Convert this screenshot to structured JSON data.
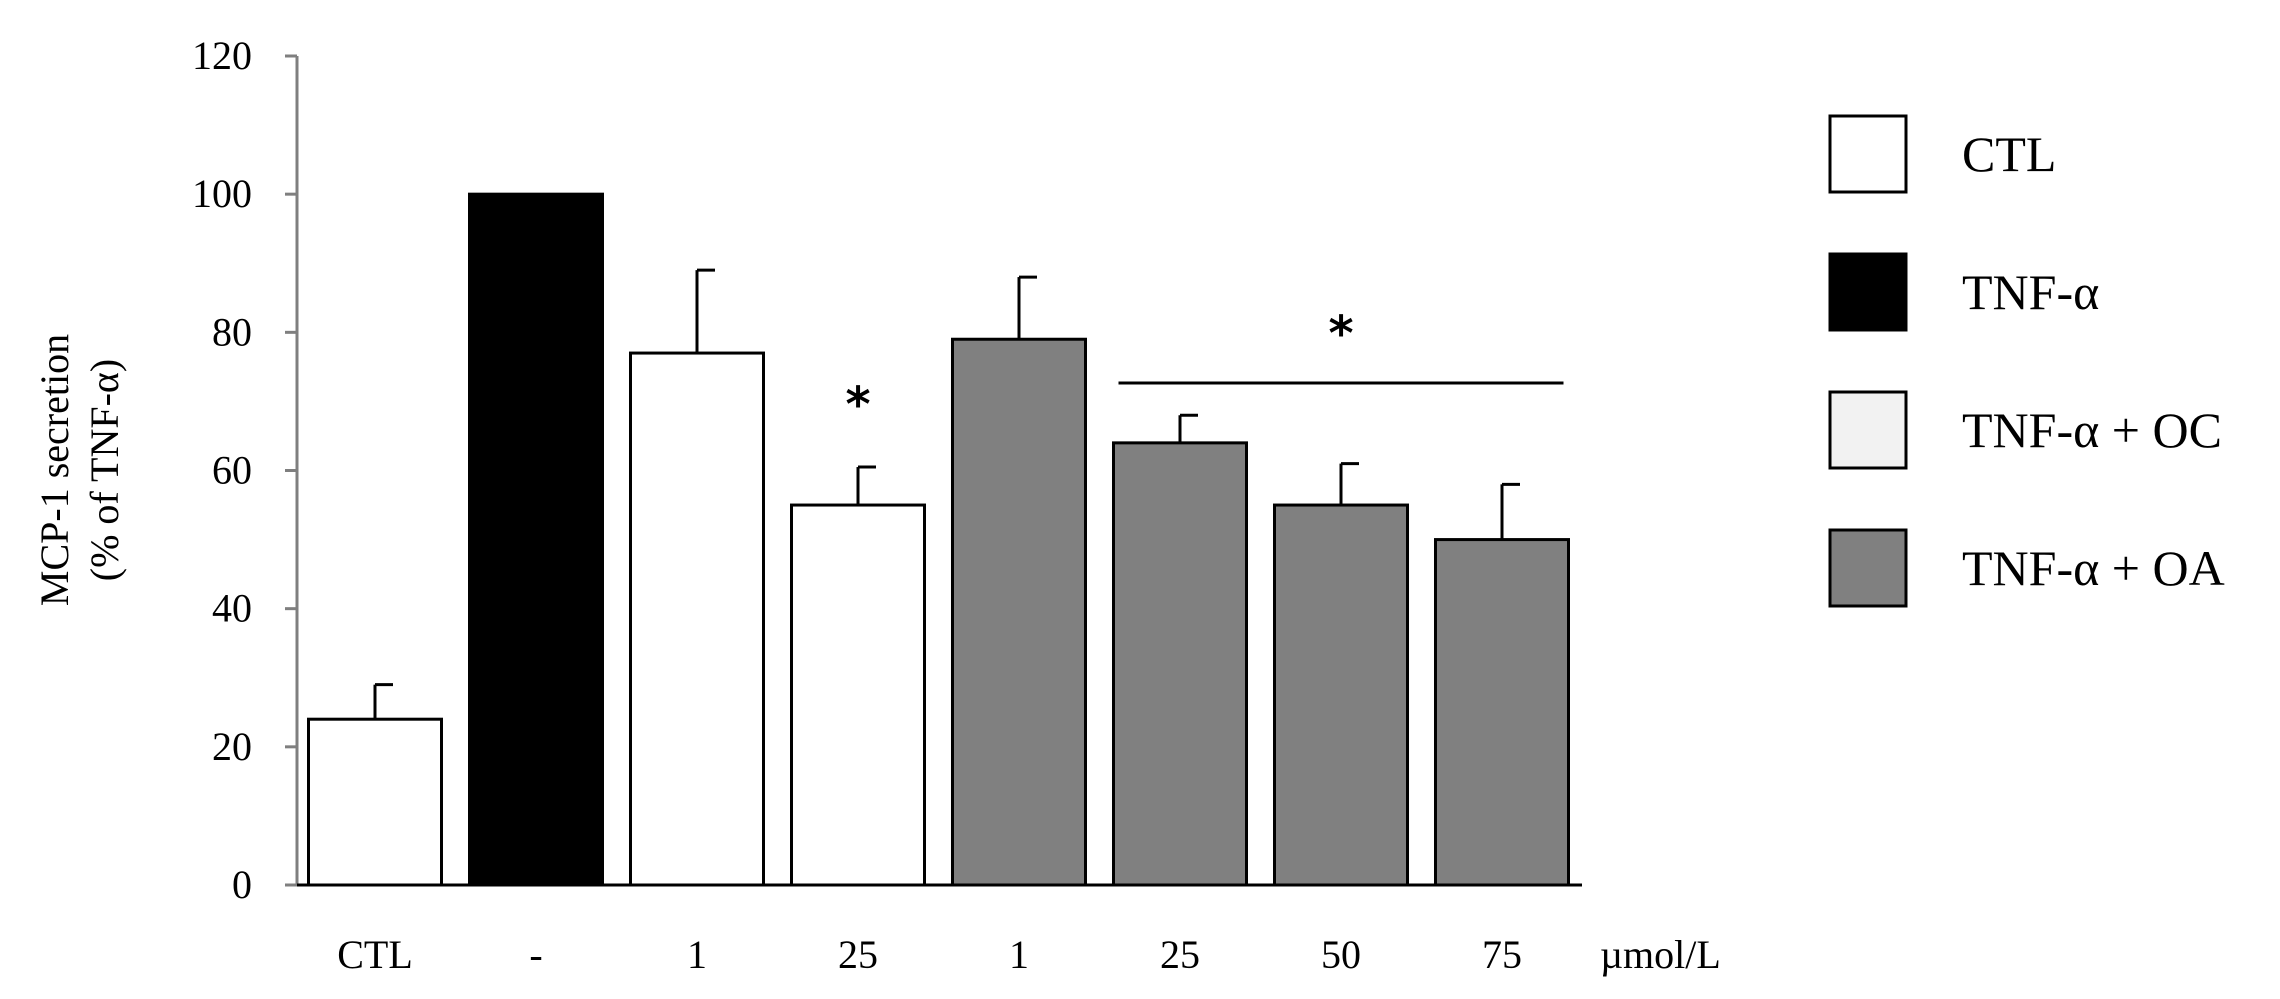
{
  "chart_data": {
    "type": "bar",
    "ylabel_lines": [
      "MCP-1 secretion",
      "(% of TNF-α)"
    ],
    "xunit": "µmol/L",
    "ylim": [
      0,
      120
    ],
    "yticks": [
      0,
      20,
      40,
      60,
      80,
      100,
      120
    ],
    "grid": false,
    "legend_position": "right",
    "categories": [
      "CTL",
      "-",
      "1",
      "25",
      "1",
      "25",
      "50",
      "75"
    ],
    "values": [
      24,
      100,
      77,
      55,
      79,
      64,
      55,
      50
    ],
    "errors": [
      5,
      0,
      12,
      5.5,
      9,
      4,
      6,
      8
    ],
    "groups": [
      "CTL",
      "TNF-α",
      "TNF-α + OC",
      "TNF-α + OC",
      "TNF-α + OA",
      "TNF-α + OA",
      "TNF-α + OA",
      "TNF-α + OA"
    ],
    "legend": [
      {
        "name": "CTL",
        "color": "#ffffff"
      },
      {
        "name": "TNF-α",
        "color": "#000000"
      },
      {
        "name": "TNF-α + OC",
        "color": "#f2f2f2"
      },
      {
        "name": "TNF-α + OA",
        "color": "#808080"
      }
    ],
    "bar_colors": [
      "#ffffff",
      "#000000",
      "#ffffff",
      "#ffffff",
      "#808080",
      "#808080",
      "#808080",
      "#808080"
    ],
    "annotations": [
      {
        "text": "*",
        "target": "bar",
        "index": 3
      },
      {
        "text": "*",
        "target": "bracket",
        "from": 5,
        "to": 7
      }
    ]
  }
}
